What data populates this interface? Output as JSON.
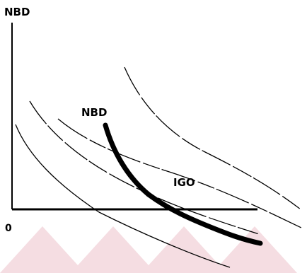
{
  "labels": {
    "y_axis": "NBD",
    "origin": "0",
    "curve_nbd": "NBD",
    "curve_igo": "IGO"
  },
  "colors": {
    "ink": "#000000",
    "watermark": "#f3d6dc"
  }
}
